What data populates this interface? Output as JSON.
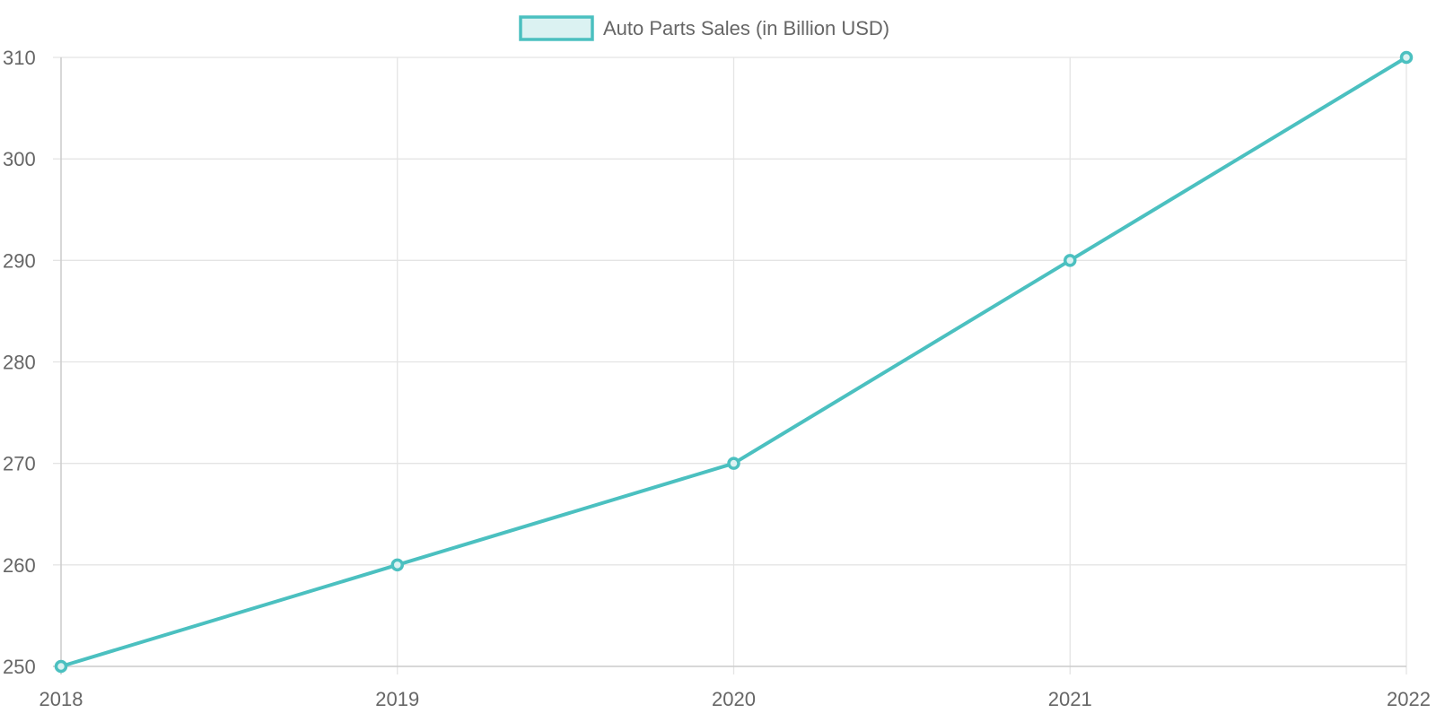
{
  "chart_data": {
    "type": "line",
    "x": [
      "2018",
      "2019",
      "2020",
      "2021",
      "2022"
    ],
    "series": [
      {
        "name": "Auto Parts Sales (in Billion USD)",
        "values": [
          250,
          260,
          270,
          290,
          310
        ],
        "color": "#4bc0c0",
        "fill": "#dbf2f2"
      }
    ],
    "yticks": [
      "250",
      "260",
      "270",
      "280",
      "290",
      "300",
      "310"
    ],
    "ylim": [
      250,
      310
    ],
    "grid": true,
    "legend": "top-center"
  }
}
